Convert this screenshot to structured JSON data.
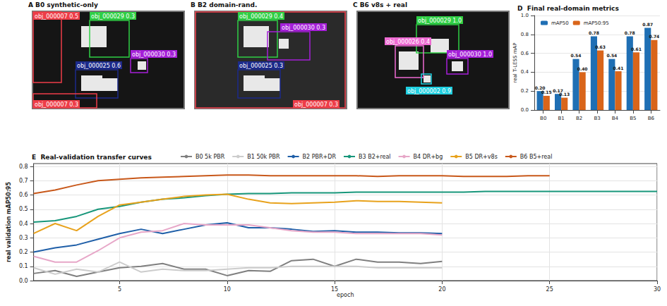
{
  "image_panels": [
    {
      "letter": "A",
      "title": "B0 synthetic-only",
      "detections": [
        {
          "label": "obj_000007 0.5",
          "color": "#ee3d48"
        },
        {
          "label": "obj_000029 0.3",
          "color": "#2fcf45"
        },
        {
          "label": "obj_000025 0.6",
          "color": "#1c2a8a"
        },
        {
          "label": "obj_000030 0.3",
          "color": "#a51fd8"
        },
        {
          "label": "obj_000007 0.3",
          "color": "#ee3d48"
        }
      ]
    },
    {
      "letter": "B",
      "title": "B2 domain-rand.",
      "detections": [
        {
          "label": "obj_000029 0.4",
          "color": "#2fcf45"
        },
        {
          "label": "obj_000030 0.3",
          "color": "#a51fd8"
        },
        {
          "label": "obj_000025 0.3",
          "color": "#1c2a8a"
        },
        {
          "label": "obj_000007 0.3",
          "color": "#ee3d48"
        }
      ]
    },
    {
      "letter": "C",
      "title": "B6 v8s + real",
      "detections": [
        {
          "label": "obj_000029 1.0",
          "color": "#2fcf45"
        },
        {
          "label": "obj_000026 0.4",
          "color": "#ee6bd3"
        },
        {
          "label": "obj_000030 1.0",
          "color": "#a51fd8"
        },
        {
          "label": "obj_000002 0.9",
          "color": "#1fcfe0"
        }
      ]
    }
  ],
  "chart_data": [
    {
      "letter": "D",
      "title": "Final real-domain metrics",
      "type": "bar",
      "categories": [
        "B0",
        "B1",
        "B2",
        "B3",
        "B4",
        "B5",
        "B6"
      ],
      "series": [
        {
          "name": "mAP50",
          "color": "#1f6fb4",
          "values": [
            0.2,
            0.17,
            0.54,
            0.78,
            0.54,
            0.78,
            0.87
          ],
          "value_labels": [
            "0.20",
            "0.17",
            "0.54",
            "0.78",
            "0.54",
            "0.78",
            "0.87"
          ]
        },
        {
          "name": "mAP50:95",
          "color": "#d9651a",
          "values": [
            0.15,
            0.13,
            0.4,
            0.63,
            0.41,
            0.61,
            0.74
          ],
          "value_labels": [
            "0.15",
            "0.13",
            "0.40",
            "0.63",
            "0.41",
            "0.61",
            "0.74"
          ]
        }
      ],
      "ylabel": "real T-LESS mAP",
      "ylim": [
        0,
        1
      ],
      "yticks": [
        {
          "value": 0,
          "label": "0.0"
        },
        {
          "value": 0.2,
          "label": "0.2"
        },
        {
          "value": 0.4,
          "label": "0.4"
        },
        {
          "value": 0.6,
          "label": "0.6"
        },
        {
          "value": 0.8,
          "label": "0.8"
        },
        {
          "value": 1,
          "label": "1.0"
        }
      ],
      "legend": "upper left",
      "data_labels": true,
      "grid": true
    },
    {
      "letter": "E",
      "title": "Real-validation transfer curves",
      "type": "line",
      "x": [
        1,
        2,
        3,
        4,
        5,
        6,
        7,
        8,
        9,
        10,
        11,
        12,
        13,
        14,
        15,
        16,
        17,
        18,
        19,
        20,
        21,
        22,
        23,
        24,
        25,
        26,
        27,
        28,
        29,
        30
      ],
      "series": [
        {
          "name": "B0 5k PBR",
          "color": "#7f7f7f",
          "values": [
            0.05,
            0.07,
            0.03,
            0.06,
            0.09,
            0.1,
            0.12,
            0.08,
            0.08,
            0.035,
            0.07,
            0.065,
            0.14,
            0.15,
            0.1,
            0.15,
            0.13,
            0.13,
            0.12,
            0.135,
            null,
            null,
            null,
            null,
            null,
            null,
            null,
            null,
            null,
            null
          ]
        },
        {
          "name": "B1 50k PBR",
          "color": "#cccccc",
          "values": [
            0.09,
            0.045,
            0.08,
            0.06,
            0.13,
            0.06,
            0.08,
            0.07,
            0.07,
            0.08,
            0.09,
            0.09,
            0.1,
            0.1,
            0.1,
            0.1,
            0.09,
            0.09,
            0.09,
            0.09,
            null,
            null,
            null,
            null,
            null,
            null,
            null,
            null,
            null,
            null
          ]
        },
        {
          "name": "B2 PBR+DR",
          "color": "#1f5fa8",
          "values": [
            0.2,
            0.23,
            0.25,
            0.29,
            0.33,
            0.36,
            0.33,
            0.36,
            0.39,
            0.405,
            0.37,
            0.37,
            0.36,
            0.345,
            0.35,
            0.34,
            0.34,
            0.335,
            0.335,
            0.33,
            null,
            null,
            null,
            null,
            null,
            null,
            null,
            null,
            null,
            null
          ]
        },
        {
          "name": "B3 B2+real",
          "color": "#17967a",
          "values": [
            0.41,
            0.42,
            0.45,
            0.5,
            0.52,
            0.55,
            0.57,
            0.58,
            0.595,
            0.605,
            0.61,
            0.61,
            0.615,
            0.615,
            0.615,
            0.62,
            0.62,
            0.62,
            0.62,
            0.62,
            0.62,
            0.625,
            0.625,
            0.625,
            0.625,
            0.625,
            0.625,
            0.625,
            0.625,
            0.625
          ]
        },
        {
          "name": "B4 DR+bg",
          "color": "#e7a7c8",
          "values": [
            0.17,
            0.13,
            0.13,
            0.21,
            0.3,
            0.34,
            0.35,
            0.4,
            0.39,
            0.39,
            0.39,
            0.37,
            0.35,
            0.34,
            0.34,
            0.33,
            0.33,
            0.33,
            0.33,
            0.32,
            null,
            null,
            null,
            null,
            null,
            null,
            null,
            null,
            null,
            null
          ]
        },
        {
          "name": "B5 DR+v8s",
          "color": "#e8a21c",
          "values": [
            0.33,
            0.4,
            0.35,
            0.45,
            0.53,
            0.55,
            0.57,
            0.59,
            0.6,
            0.605,
            0.57,
            0.545,
            0.54,
            0.545,
            0.55,
            0.56,
            0.555,
            0.555,
            0.55,
            0.545,
            null,
            null,
            null,
            null,
            null,
            null,
            null,
            null,
            null,
            null
          ]
        },
        {
          "name": "B6 B5+real",
          "color": "#c8581a",
          "values": [
            0.61,
            0.635,
            0.67,
            0.7,
            0.71,
            0.72,
            0.725,
            0.73,
            0.735,
            0.74,
            0.74,
            0.735,
            0.735,
            0.735,
            0.735,
            0.735,
            0.73,
            0.735,
            0.735,
            0.735,
            0.73,
            0.73,
            0.73,
            0.735,
            0.735,
            null,
            null,
            null,
            null,
            null
          ]
        }
      ],
      "xlabel": "epoch",
      "ylabel": "real validation mAP50:95",
      "xlim": [
        1,
        30
      ],
      "xticks": [
        5,
        10,
        15,
        20,
        25,
        30
      ],
      "ylim": [
        0,
        0.82
      ],
      "yticks": [
        {
          "value": 0,
          "label": "0.0"
        },
        {
          "value": 0.1,
          "label": "0.1"
        },
        {
          "value": 0.2,
          "label": "0.2"
        },
        {
          "value": 0.3,
          "label": "0.3"
        },
        {
          "value": 0.4,
          "label": "0.4"
        },
        {
          "value": 0.5,
          "label": "0.5"
        },
        {
          "value": 0.6,
          "label": "0.6"
        },
        {
          "value": 0.7,
          "label": "0.7"
        },
        {
          "value": 0.8,
          "label": "0.8"
        }
      ],
      "legend": "top",
      "grid": true
    }
  ]
}
